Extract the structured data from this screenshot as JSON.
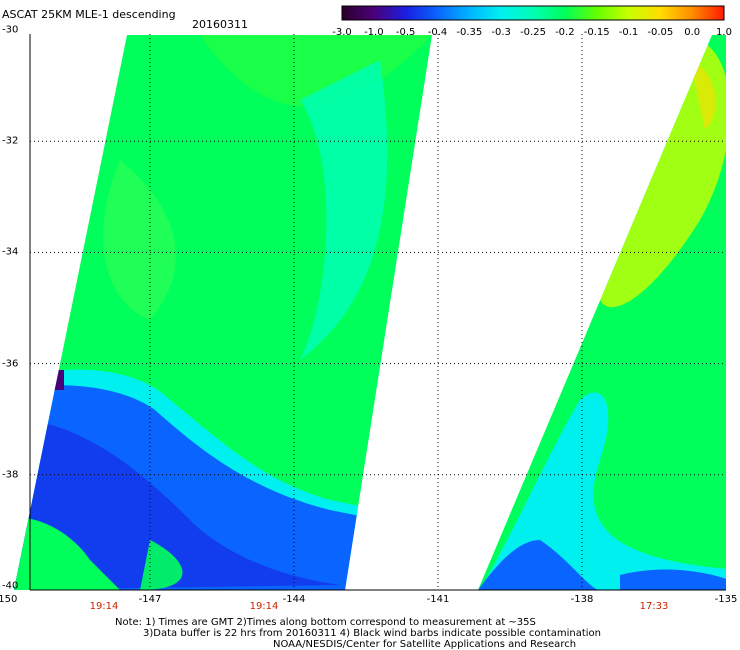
{
  "header": {
    "title": "ASCAT 25KM MLE-1 descending",
    "date": "20160311"
  },
  "colorbar": {
    "labels": [
      "-3.0",
      "-1.0",
      "-0.5",
      "-0.4",
      "-0.35",
      "-0.3",
      "-0.25",
      "-0.2",
      "-0.15",
      "-0.1",
      "-0.05",
      "0.0",
      "1.0"
    ],
    "colors": [
      "#2a0028",
      "#4b007a",
      "#1a1ee0",
      "#0a64ff",
      "#00b4ff",
      "#00f0f0",
      "#00ffb4",
      "#00ff5a",
      "#64ff00",
      "#c8ff00",
      "#ffdc00",
      "#ff8c00",
      "#ff1a00"
    ]
  },
  "map": {
    "lat_labels": [
      "-30",
      "-32",
      "-34",
      "-36",
      "-38",
      "-40"
    ],
    "lon_labels": [
      "-150",
      "-147",
      "-144",
      "-141",
      "-138",
      "-135"
    ],
    "pass_times": [
      "19:14",
      "19:14",
      "17:33"
    ],
    "lat_range": [
      -40,
      -30
    ],
    "lon_range": [
      -150,
      -135
    ],
    "swaths": [
      {
        "name": "west swath",
        "lon_bounds_at_top": [
          -146.5,
          -140.5
        ],
        "lon_bounds_at_bottom": [
          -150,
          -143
        ]
      },
      {
        "name": "east swath",
        "lon_bounds_at_top": [
          -135.5,
          -135
        ],
        "lon_bounds_at_bottom": [
          -139.5,
          -135
        ]
      }
    ]
  },
  "notes": {
    "line1": "Note: 1) Times are GMT 2)Times along bottom correspond to measurement at ~35S",
    "line2": "3)Data buffer is 22 hrs from 20160311 4) Black wind barbs indicate possible contamination",
    "line3": "NOAA/NESDIS/Center for Satellite Applications and Research"
  }
}
